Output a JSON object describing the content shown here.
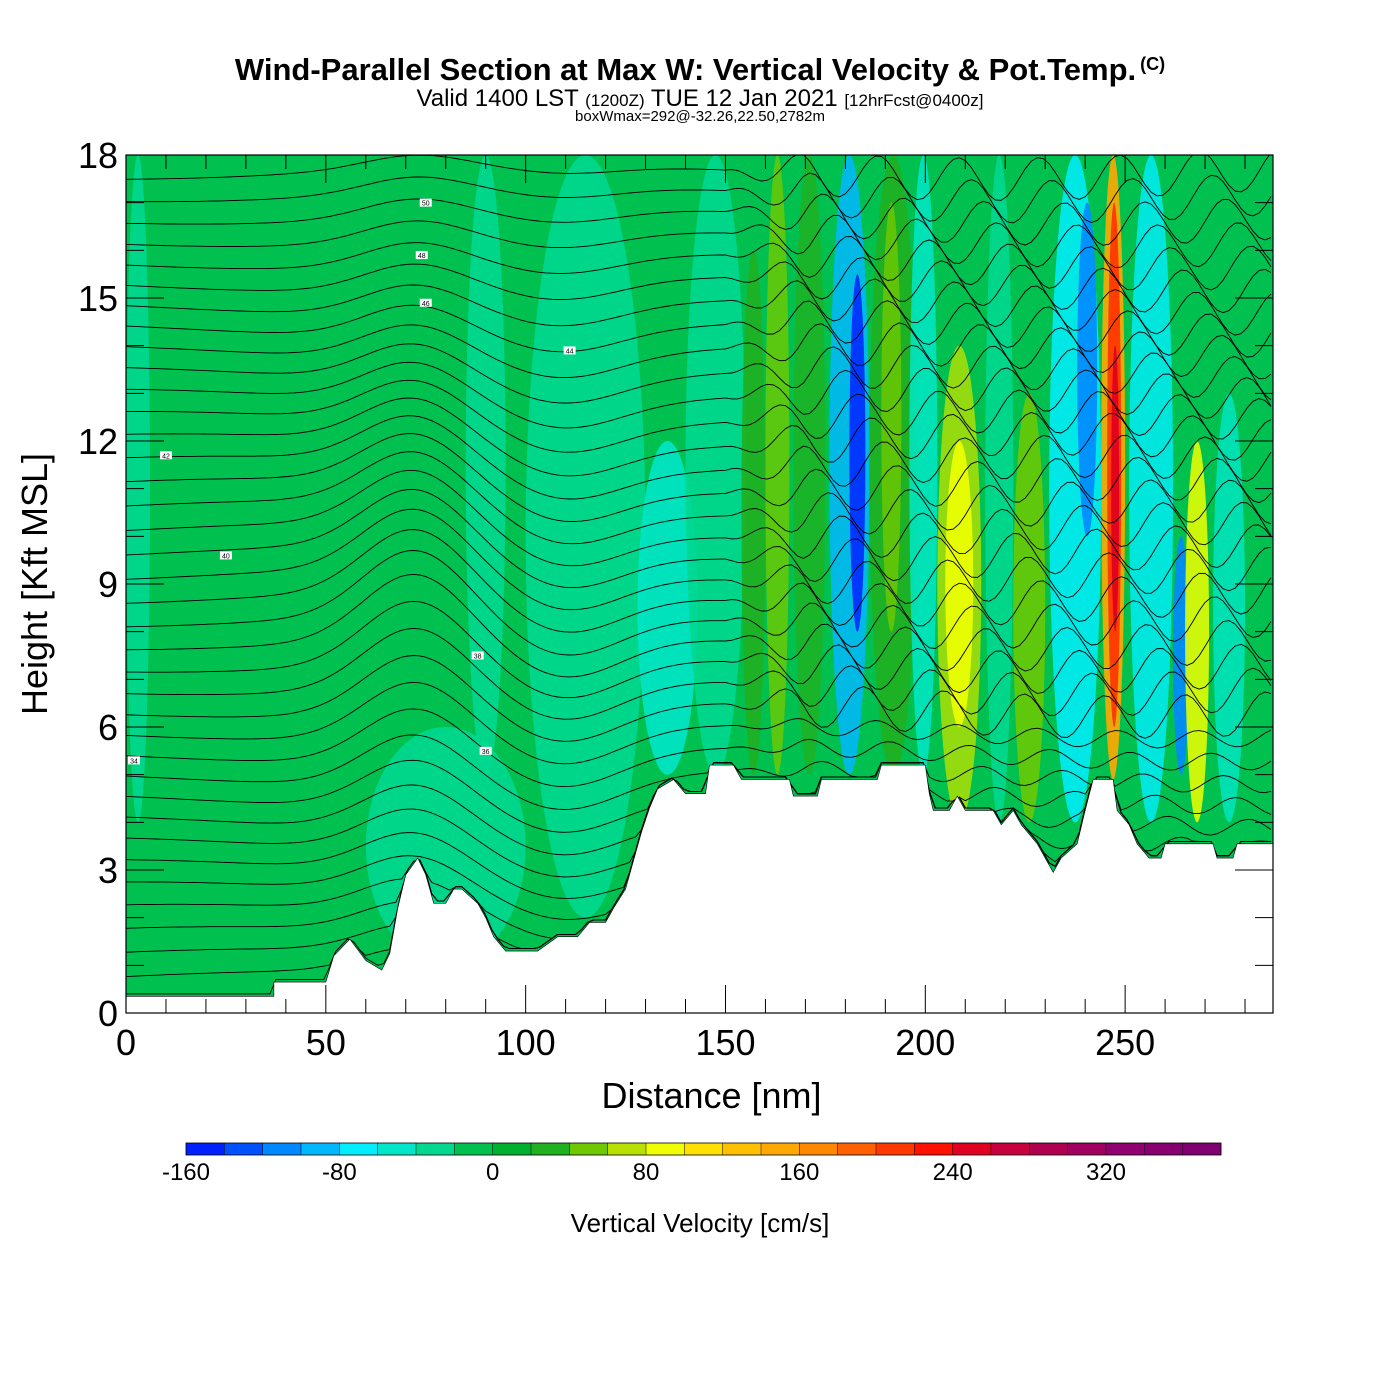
{
  "header": {
    "title": "Wind-Parallel Section at Max W: Vertical Velocity & Pot.Temp.",
    "copyright": "(C)",
    "valid_main": "Valid 1400 LST",
    "valid_z": "(1200Z)",
    "valid_date": "TUE 12 Jan 2021",
    "forecast": "[12hrFcst@0400z]",
    "boxinfo": "boxWmax=292@-32.26,22.50,2782m"
  },
  "chart_data": {
    "type": "heatmap",
    "xlabel": "Distance [nm]",
    "ylabel": "Height [Kft MSL]",
    "xlim": [
      0,
      287
    ],
    "ylim": [
      0,
      18
    ],
    "xticks": [
      0,
      50,
      100,
      150,
      200,
      250
    ],
    "yticks": [
      0,
      3,
      6,
      9,
      12,
      15,
      18
    ],
    "colorbar": {
      "label": "Vertical Velocity [cm/s]",
      "min": -160,
      "max": 380,
      "step": 20,
      "tick_values": [
        -160,
        -80,
        0,
        80,
        160,
        240,
        320
      ],
      "colors": [
        "#0020ff",
        "#0050ff",
        "#0088ff",
        "#00b8ff",
        "#00eeff",
        "#00e6c8",
        "#00d890",
        "#00c050",
        "#00b030",
        "#20b020",
        "#70c800",
        "#b8e000",
        "#f0ff00",
        "#ffe000",
        "#ffc000",
        "#ffa800",
        "#ff8800",
        "#ff6000",
        "#ff3800",
        "#ff1000",
        "#e00020",
        "#c80040",
        "#b00050",
        "#a00060",
        "#900070",
        "#880070",
        "#800070"
      ]
    },
    "terrain_top_kft": [
      [
        0,
        0.35
      ],
      [
        37,
        0.35
      ],
      [
        37,
        0.65
      ],
      [
        50,
        0.65
      ],
      [
        52,
        1.2
      ],
      [
        56,
        1.55
      ],
      [
        60,
        1.1
      ],
      [
        64,
        0.9
      ],
      [
        66,
        1.25
      ],
      [
        68,
        2.2
      ],
      [
        70,
        2.9
      ],
      [
        73,
        3.25
      ],
      [
        75,
        2.9
      ],
      [
        77,
        2.3
      ],
      [
        80,
        2.3
      ],
      [
        82,
        2.6
      ],
      [
        84,
        2.6
      ],
      [
        88,
        2.3
      ],
      [
        90,
        2.0
      ],
      [
        92,
        1.6
      ],
      [
        95,
        1.3
      ],
      [
        103,
        1.3
      ],
      [
        108,
        1.6
      ],
      [
        113,
        1.6
      ],
      [
        116,
        1.9
      ],
      [
        120,
        1.9
      ],
      [
        122,
        2.2
      ],
      [
        125,
        2.6
      ],
      [
        127,
        3.2
      ],
      [
        129,
        3.8
      ],
      [
        131,
        4.3
      ],
      [
        133,
        4.7
      ],
      [
        137,
        4.9
      ],
      [
        140,
        4.6
      ],
      [
        145,
        4.6
      ],
      [
        146,
        5.2
      ],
      [
        152,
        5.2
      ],
      [
        154,
        4.9
      ],
      [
        166,
        4.9
      ],
      [
        167,
        4.55
      ],
      [
        173,
        4.55
      ],
      [
        174,
        4.9
      ],
      [
        188,
        4.9
      ],
      [
        189,
        5.2
      ],
      [
        200,
        5.2
      ],
      [
        201,
        4.6
      ],
      [
        202,
        4.25
      ],
      [
        206,
        4.25
      ],
      [
        208,
        4.55
      ],
      [
        210,
        4.25
      ],
      [
        217,
        4.25
      ],
      [
        219,
        3.95
      ],
      [
        222,
        4.25
      ],
      [
        224,
        3.95
      ],
      [
        228,
        3.55
      ],
      [
        230,
        3.25
      ],
      [
        232,
        2.95
      ],
      [
        234,
        3.25
      ],
      [
        238,
        3.55
      ],
      [
        240,
        4.25
      ],
      [
        242,
        4.9
      ],
      [
        247,
        4.9
      ],
      [
        248,
        4.25
      ],
      [
        251,
        3.95
      ],
      [
        253,
        3.55
      ],
      [
        256,
        3.25
      ],
      [
        259,
        3.25
      ],
      [
        260,
        3.55
      ],
      [
        272,
        3.55
      ],
      [
        273,
        3.25
      ],
      [
        277,
        3.25
      ],
      [
        278,
        3.55
      ],
      [
        287,
        3.55
      ]
    ],
    "theta_label_values": [
      50,
      48,
      46,
      44,
      42,
      40,
      38,
      36,
      34
    ]
  },
  "colors": {
    "terrain": "#ffffff",
    "background_field": "#00c050"
  }
}
